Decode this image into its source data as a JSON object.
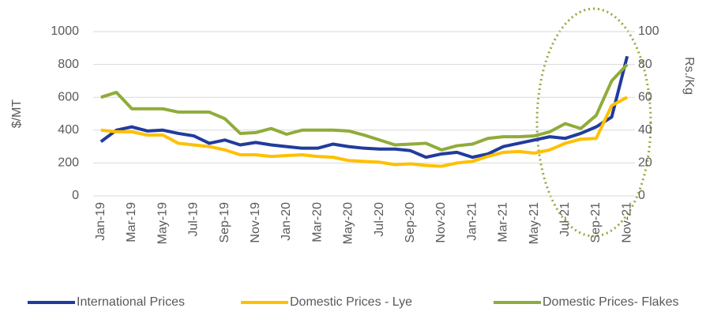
{
  "chart_data": {
    "type": "line",
    "categories": [
      "Jan-19",
      null,
      "Mar-19",
      null,
      "May-19",
      null,
      "Jul-19",
      null,
      "Sep-19",
      null,
      "Nov-19",
      null,
      "Jan-20",
      null,
      "Mar-20",
      null,
      "May-20",
      null,
      "Jul-20",
      null,
      "Sep-20",
      null,
      "Nov-20",
      null,
      "Jan-21",
      null,
      "Mar-21",
      null,
      "May-21",
      null,
      "Jul-21",
      null,
      "Sep-21",
      null,
      "Nov-21"
    ],
    "ylabel": "$/MT",
    "y2label": "Rs./Kg",
    "ylim": [
      0,
      1000
    ],
    "yticks": [
      0,
      200,
      400,
      600,
      800,
      1000
    ],
    "y2lim": [
      0,
      100
    ],
    "y2ticks": [
      0,
      20,
      40,
      60,
      80,
      100
    ],
    "grid": true,
    "legend": "bottom",
    "series": [
      {
        "name": "International Prices",
        "color": "#203c9c",
        "axis": "y",
        "values": [
          330,
          400,
          420,
          395,
          400,
          380,
          365,
          320,
          340,
          310,
          325,
          310,
          300,
          290,
          290,
          315,
          300,
          290,
          285,
          285,
          275,
          235,
          255,
          265,
          235,
          255,
          300,
          320,
          340,
          360,
          350,
          380,
          420,
          480,
          850
        ]
      },
      {
        "name": "Domestic Prices - Lye",
        "color": "#ffc000",
        "axis": "y2",
        "values": [
          40,
          39,
          39,
          37,
          37,
          32,
          31,
          30,
          28,
          25,
          25,
          24,
          24.5,
          25,
          24,
          23.5,
          21.5,
          21,
          20.5,
          19,
          19.5,
          18.5,
          18,
          20,
          21,
          24,
          26.5,
          27,
          26,
          28,
          32,
          34.5,
          35,
          55,
          60
        ]
      },
      {
        "name": "Domestic Prices- Flakes",
        "color": "#8fac3a",
        "axis": "y2",
        "values": [
          60,
          63,
          53,
          53,
          53,
          51,
          51,
          51,
          47,
          38,
          38.5,
          41,
          37.5,
          40,
          40,
          40,
          39.5,
          37,
          34,
          31,
          31.5,
          32,
          28,
          30.5,
          31.5,
          35,
          36,
          36,
          36.5,
          39,
          44,
          41,
          49,
          70,
          80
        ]
      }
    ]
  }
}
